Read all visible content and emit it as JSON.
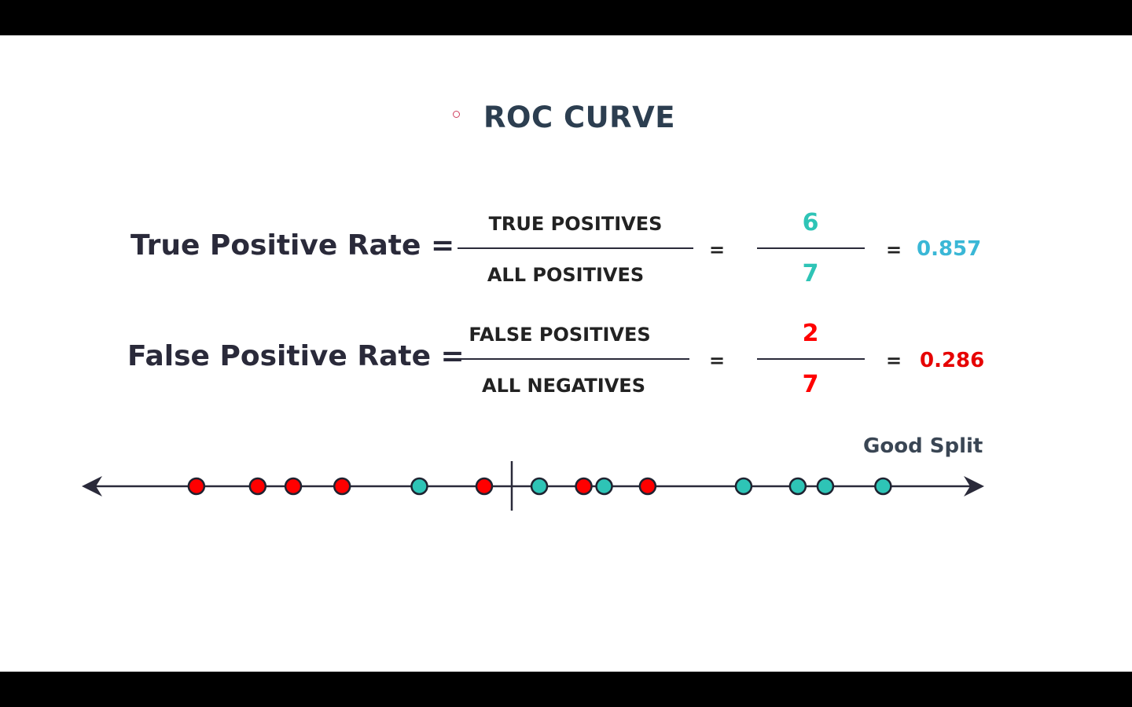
{
  "title": "ROC CURVE",
  "colors": {
    "positive": "#2ec4b6",
    "negative": "#ff0000",
    "positive_result": "#3ab7d6",
    "text_dark": "#2a2a3a",
    "bullet": "#d0405f"
  },
  "tpr": {
    "label": "True Positive Rate =",
    "numerator_text": "TRUE POSITIVES",
    "denominator_text": "ALL POSITIVES",
    "equals": "=",
    "numerator_value": "6",
    "denominator_value": "7",
    "result": "0.857"
  },
  "fpr": {
    "label": "False Positive Rate =",
    "numerator_text": "FALSE POSITIVES",
    "denominator_text": "ALL NEGATIVES",
    "equals": "=",
    "numerator_value": "2",
    "denominator_value": "7",
    "result": "0.286"
  },
  "number_line": {
    "annotation": "Good Split",
    "points": [
      {
        "class": "negative",
        "position": 0.122
      },
      {
        "class": "negative",
        "position": 0.191
      },
      {
        "class": "negative",
        "position": 0.231
      },
      {
        "class": "negative",
        "position": 0.286
      },
      {
        "class": "positive",
        "position": 0.373
      },
      {
        "class": "negative",
        "position": 0.446
      },
      {
        "class": "positive",
        "position": 0.508
      },
      {
        "class": "negative",
        "position": 0.558
      },
      {
        "class": "positive",
        "position": 0.581
      },
      {
        "class": "negative",
        "position": 0.63
      },
      {
        "class": "positive",
        "position": 0.738
      },
      {
        "class": "positive",
        "position": 0.799
      },
      {
        "class": "positive",
        "position": 0.83
      },
      {
        "class": "positive",
        "position": 0.895
      }
    ],
    "split_position": 0.477
  }
}
